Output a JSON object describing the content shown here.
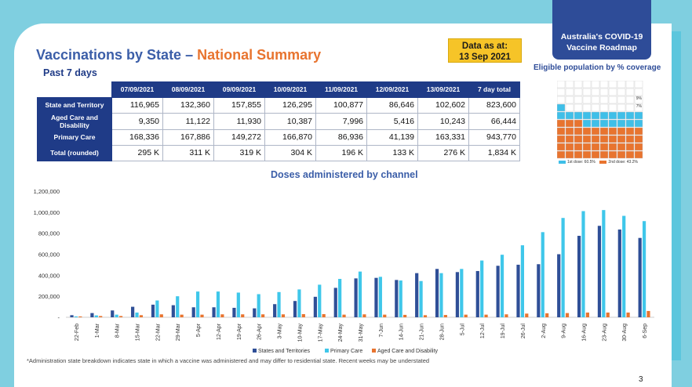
{
  "header": {
    "title_main": "Vaccinations by State – ",
    "title_highlight": "National Summary",
    "subtitle": "Past 7 days",
    "data_as_at_line1": "Data as at:",
    "data_as_at_line2": "13 Sep 2021",
    "roadmap_line1": "Australia's COVID-19",
    "roadmap_line2": "Vaccine Roadmap",
    "eligible_title": "Eligible population by % coverage"
  },
  "waffle": {
    "first_dose_pct": 60.5,
    "second_dose_pct": 43.2,
    "label_a": "9%",
    "label_b": "7%",
    "legend_first": "1st dose: 60.5%",
    "legend_second": "2nd dose: 43.2%",
    "colors": {
      "first": "#3fbfe8",
      "second": "#e8742f",
      "empty": "#ffffff"
    }
  },
  "table": {
    "headers": [
      "07/09/2021",
      "08/09/2021",
      "09/09/2021",
      "10/09/2021",
      "11/09/2021",
      "12/09/2021",
      "13/09/2021",
      "7 day total"
    ],
    "rows": [
      {
        "label": "State and Territory",
        "values": [
          "116,965",
          "132,360",
          "157,855",
          "126,295",
          "100,877",
          "86,646",
          "102,602",
          "823,600"
        ]
      },
      {
        "label": "Aged Care and Disability",
        "values": [
          "9,350",
          "11,122",
          "11,930",
          "10,387",
          "7,996",
          "5,416",
          "10,243",
          "66,444"
        ]
      },
      {
        "label": "Primary Care",
        "values": [
          "168,336",
          "167,886",
          "149,272",
          "166,870",
          "86,936",
          "41,139",
          "163,331",
          "943,770"
        ]
      },
      {
        "label": "Total (rounded)",
        "values": [
          "295 K",
          "311 K",
          "319 K",
          "304 K",
          "196 K",
          "133 K",
          "276 K",
          "1,834 K"
        ]
      }
    ]
  },
  "chart_data": {
    "type": "bar",
    "title": "Doses administered by channel",
    "categories": [
      "22-Feb",
      "1-Mar",
      "8-Mar",
      "15-Mar",
      "22-Mar",
      "29-Mar",
      "5-Apr",
      "12-Apr",
      "19-Apr",
      "26-Apr",
      "3-May",
      "10-May",
      "17-May",
      "24-May",
      "31-May",
      "7-Jun",
      "14-Jun",
      "21-Jun",
      "28-Jun",
      "5-Jul",
      "12-Jul",
      "19-Jul",
      "26-Jul",
      "2-Aug",
      "9-Aug",
      "16-Aug",
      "23-Aug",
      "30-Aug",
      "6-Sep"
    ],
    "yticks": [
      "1,200,000",
      "1,000,000",
      "800,000",
      "600,000",
      "400,000",
      "200,000",
      "-"
    ],
    "ylim": [
      0,
      1200000
    ],
    "series": [
      {
        "name": "States and Territories",
        "color": "#2f4f97",
        "values": [
          20000,
          40000,
          65000,
          100000,
          120000,
          115000,
          95000,
          95000,
          90000,
          85000,
          125000,
          155000,
          195000,
          280000,
          370000,
          375000,
          355000,
          420000,
          460000,
          430000,
          440000,
          490000,
          500000,
          505000,
          600000,
          775000,
          870000,
          835000,
          755000
        ]
      },
      {
        "name": "Primary Care",
        "color": "#3fc7ea",
        "values": [
          8000,
          18000,
          25000,
          45000,
          160000,
          200000,
          245000,
          245000,
          235000,
          220000,
          240000,
          265000,
          310000,
          365000,
          435000,
          385000,
          350000,
          345000,
          420000,
          460000,
          540000,
          595000,
          685000,
          810000,
          945000,
          1010000,
          1020000,
          965000,
          915000
        ]
      },
      {
        "name": "Aged Care and Disability",
        "color": "#e8742f",
        "values": [
          8000,
          12000,
          12000,
          20000,
          28000,
          25000,
          25000,
          28000,
          28000,
          28000,
          28000,
          30000,
          30000,
          25000,
          28000,
          25000,
          23000,
          20000,
          22000,
          25000,
          25000,
          28000,
          35000,
          38000,
          40000,
          45000,
          45000,
          45000,
          60000
        ]
      }
    ]
  },
  "footnote": "*Administration state breakdown indicates state in which a vaccine was administered and may differ to residential state. Recent weeks may be understated",
  "page_number": "3"
}
